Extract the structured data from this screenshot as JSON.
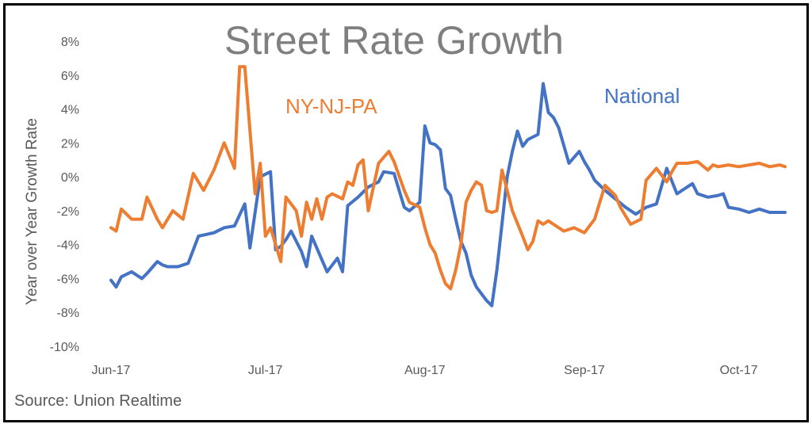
{
  "chart_data": {
    "type": "line",
    "title": "Street Rate Growth",
    "xlabel": "",
    "ylabel": "Year over Year Growth Rate",
    "ylim": [
      -10,
      8
    ],
    "yticks": [
      "8%",
      "6%",
      "4%",
      "2%",
      "0%",
      "-2%",
      "-4%",
      "-6%",
      "-8%",
      "-10%"
    ],
    "ytick_values": [
      8,
      6,
      4,
      2,
      0,
      -2,
      -4,
      -6,
      -8,
      -10
    ],
    "xlim": [
      0,
      131
    ],
    "xticks": [
      "Jun-17",
      "Jul-17",
      "Aug-17",
      "Sep-17",
      "Oct-17"
    ],
    "xtick_values": [
      0,
      30,
      61,
      92,
      122
    ],
    "grid": false,
    "legend": "inline labels",
    "source": "Source: Union Realtime",
    "series": [
      {
        "name": "National",
        "color": "#4472c4",
        "x": [
          0,
          1,
          2,
          4,
          6,
          7,
          9,
          10,
          11,
          13,
          15,
          17,
          20,
          22,
          24,
          26,
          27,
          29,
          31,
          32,
          33,
          34,
          35,
          37,
          38,
          39,
          41,
          42,
          44,
          45,
          46,
          48,
          50,
          52,
          53,
          55,
          57,
          58,
          60,
          61,
          62,
          63,
          64,
          65,
          66,
          67,
          68,
          69,
          70,
          71,
          73,
          74,
          75,
          77,
          78,
          79,
          80,
          81,
          83,
          84,
          85,
          86,
          87,
          89,
          91,
          92,
          93,
          94,
          96,
          98,
          100,
          102,
          104,
          106,
          108,
          110,
          112,
          113,
          114,
          116,
          118,
          119,
          120,
          122,
          124,
          126,
          128,
          129,
          131
        ],
        "values": [
          -6.1,
          -6.5,
          -5.9,
          -5.6,
          -6.0,
          -5.7,
          -5.0,
          -5.2,
          -5.3,
          -5.3,
          -5.1,
          -3.5,
          -3.3,
          -3.0,
          -2.9,
          -1.6,
          -4.2,
          0.0,
          0.3,
          -4.3,
          -4.1,
          -3.7,
          -3.2,
          -4.4,
          -5.3,
          -3.5,
          -4.9,
          -5.6,
          -4.8,
          -5.6,
          -1.7,
          -1.2,
          -0.6,
          -0.3,
          0.3,
          0.2,
          -1.8,
          -2.0,
          -1.5,
          3.0,
          2.0,
          1.9,
          1.6,
          -0.7,
          -1.1,
          -2.5,
          -3.8,
          -4.5,
          -5.8,
          -6.5,
          -7.3,
          -7.6,
          -5.5,
          0.0,
          1.5,
          2.7,
          1.8,
          2.2,
          2.5,
          5.5,
          3.8,
          3.5,
          2.9,
          0.8,
          1.5,
          0.9,
          0.4,
          -0.2,
          -0.8,
          -1.3,
          -1.8,
          -2.2,
          -1.8,
          -1.6,
          0.5,
          -1.0,
          -0.6,
          -0.4,
          -1.0,
          -1.2,
          -1.1,
          -1.0,
          -1.8,
          -1.9,
          -2.1,
          -1.9,
          -2.1,
          -2.1,
          -2.1
        ]
      },
      {
        "name": "NY-NJ-PA",
        "color": "#ed7d31",
        "x": [
          0,
          1,
          2,
          4,
          6,
          7,
          9,
          10,
          12,
          14,
          16,
          18,
          20,
          22,
          24,
          25,
          26,
          28,
          29,
          30,
          31,
          32,
          33,
          34,
          36,
          37,
          38,
          39,
          40,
          41,
          42,
          43,
          45,
          46,
          47,
          48,
          49,
          50,
          52,
          54,
          55,
          57,
          58,
          60,
          61,
          62,
          63,
          64,
          65,
          66,
          67,
          68,
          69,
          70,
          71,
          72,
          73,
          74,
          75,
          76,
          78,
          80,
          81,
          82,
          83,
          84,
          85,
          86,
          88,
          90,
          92,
          94,
          96,
          98,
          99,
          101,
          103,
          104,
          106,
          108,
          109,
          110,
          112,
          114,
          116,
          117,
          118,
          120,
          122,
          124,
          126,
          128,
          130,
          131
        ],
        "values": [
          -3.0,
          -3.2,
          -1.9,
          -2.5,
          -2.5,
          -1.2,
          -2.5,
          -3.0,
          -2.0,
          -2.5,
          0.2,
          -0.8,
          0.4,
          2.0,
          0.5,
          6.5,
          6.5,
          -1.0,
          0.8,
          -3.5,
          -3.0,
          -4.0,
          -5.0,
          -1.2,
          -2.0,
          -3.5,
          -1.5,
          -2.5,
          -1.3,
          -2.5,
          -1.2,
          -1.0,
          -1.3,
          -0.3,
          -0.5,
          0.7,
          1.0,
          -2.0,
          0.8,
          1.5,
          0.9,
          -0.8,
          -1.5,
          -1.8,
          -3.0,
          -4.0,
          -4.5,
          -5.5,
          -6.3,
          -6.6,
          -5.5,
          -4.0,
          -1.5,
          -0.8,
          -0.3,
          -0.5,
          -2.0,
          -2.1,
          -2.0,
          0.4,
          -2.0,
          -3.5,
          -4.3,
          -3.8,
          -2.6,
          -2.8,
          -2.6,
          -2.8,
          -3.2,
          -3.0,
          -3.3,
          -2.5,
          -0.5,
          -1.1,
          -1.8,
          -2.8,
          -2.5,
          -0.2,
          0.5,
          -0.3,
          0.3,
          0.8,
          0.8,
          0.9,
          0.4,
          0.7,
          0.6,
          0.7,
          0.6,
          0.7,
          0.8,
          0.6,
          0.7,
          0.6
        ]
      }
    ]
  }
}
